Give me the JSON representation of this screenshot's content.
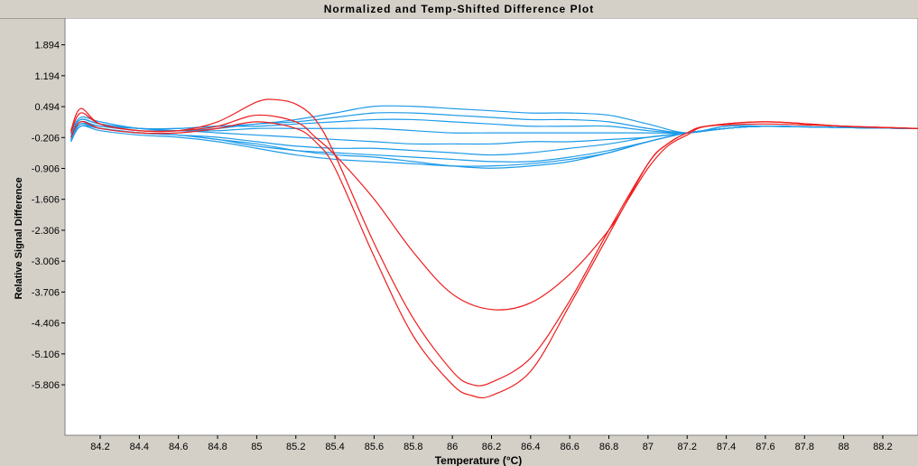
{
  "chart_data": {
    "type": "line",
    "title": "Normalized and Temp-Shifted Difference Plot",
    "xlabel": "Temperature (°C)",
    "ylabel": "Relative Signal Difference",
    "xlim": [
      84.02,
      88.38
    ],
    "ylim": [
      -6.95,
      2.5
    ],
    "xticks": [
      84.2,
      84.4,
      84.6,
      84.8,
      85,
      85.2,
      85.4,
      85.6,
      85.8,
      86,
      86.2,
      86.4,
      86.6,
      86.8,
      87,
      87.2,
      87.4,
      87.6,
      87.8,
      88,
      88.2
    ],
    "xtick_labels": [
      "84.2",
      "84.4",
      "84.6",
      "84.8",
      "85",
      "85.2",
      "85.4",
      "85.6",
      "85.8",
      "86",
      "86.2",
      "86.4",
      "86.6",
      "86.8",
      "87",
      "87.2",
      "87.4",
      "87.6",
      "87.8",
      "88",
      "88.2"
    ],
    "yticks": [
      1.894,
      1.194,
      0.494,
      -0.206,
      -0.906,
      -1.606,
      -2.306,
      -3.006,
      -3.706,
      -4.406,
      -5.106,
      -5.806
    ],
    "ytick_labels": [
      "1.894",
      "1.194",
      "0.494",
      "-0.206",
      "-0.906",
      "-1.606",
      "-2.306",
      "-3.006",
      "-3.706",
      "-4.406",
      "-5.106",
      "-5.806"
    ],
    "grid": false,
    "colors": {
      "variant": "#ee1c1c",
      "reference": "#1e9be8",
      "background": "#ffffff",
      "frame": "#d4d0c8"
    },
    "series": [
      {
        "group": "variant",
        "x": [
          84.05,
          84.1,
          84.2,
          84.4,
          84.6,
          84.8,
          85,
          85.1,
          85.2,
          85.3,
          85.4,
          85.6,
          85.8,
          86,
          86.1,
          86.2,
          86.4,
          86.6,
          86.8,
          87,
          87.1,
          87.2,
          87.3,
          87.6,
          88,
          88.38
        ],
        "y": [
          -0.1,
          0.35,
          0.1,
          -0.05,
          -0.05,
          0.15,
          0.6,
          0.65,
          0.55,
          0.2,
          -0.6,
          -2.6,
          -4.3,
          -5.5,
          -5.8,
          -5.75,
          -5.2,
          -3.9,
          -2.3,
          -0.8,
          -0.35,
          -0.1,
          0.05,
          0.1,
          0.05,
          0.0
        ]
      },
      {
        "group": "variant",
        "x": [
          84.05,
          84.1,
          84.2,
          84.4,
          84.6,
          84.8,
          85,
          85.2,
          85.3,
          85.4,
          85.6,
          85.8,
          86,
          86.1,
          86.2,
          86.4,
          86.6,
          86.8,
          87,
          87.1,
          87.2,
          87.3,
          87.6,
          88,
          88.38
        ],
        "y": [
          -0.2,
          0.15,
          0.0,
          -0.1,
          -0.1,
          0.0,
          0.15,
          0.0,
          -0.3,
          -0.9,
          -2.9,
          -4.7,
          -5.8,
          -6.05,
          -6.05,
          -5.5,
          -4.0,
          -2.4,
          -0.8,
          -0.35,
          -0.1,
          0.05,
          0.15,
          0.05,
          0.0
        ]
      },
      {
        "group": "variant",
        "x": [
          84.05,
          84.1,
          84.2,
          84.4,
          84.6,
          84.8,
          85,
          85.2,
          85.3,
          85.4,
          85.6,
          85.8,
          86,
          86.2,
          86.4,
          86.6,
          86.8,
          86.9,
          87,
          87.1,
          87.2,
          87.3,
          87.6,
          88,
          88.38
        ],
        "y": [
          -0.05,
          0.45,
          0.1,
          -0.05,
          -0.05,
          0.05,
          0.3,
          0.15,
          -0.2,
          -0.6,
          -1.6,
          -2.8,
          -3.75,
          -4.1,
          -3.95,
          -3.3,
          -2.3,
          -1.6,
          -0.9,
          -0.4,
          -0.15,
          0.05,
          0.15,
          0.05,
          0.0
        ]
      },
      {
        "group": "reference",
        "x": [
          84.05,
          84.1,
          84.2,
          84.4,
          84.6,
          84.8,
          85,
          85.2,
          85.4,
          85.6,
          85.8,
          86,
          86.2,
          86.4,
          86.6,
          86.8,
          87,
          87.2,
          87.4,
          87.6,
          88,
          88.38
        ],
        "y": [
          -0.1,
          0.25,
          0.15,
          0.0,
          0.0,
          0.05,
          0.1,
          0.2,
          0.35,
          0.5,
          0.5,
          0.45,
          0.4,
          0.35,
          0.35,
          0.3,
          0.1,
          -0.1,
          0.05,
          0.05,
          0.02,
          0.0
        ]
      },
      {
        "group": "reference",
        "x": [
          84.05,
          84.1,
          84.2,
          84.4,
          84.6,
          84.8,
          85,
          85.2,
          85.4,
          85.6,
          85.8,
          86,
          86.2,
          86.4,
          86.6,
          86.8,
          87,
          87.2,
          87.4,
          87.6,
          88,
          88.38
        ],
        "y": [
          -0.15,
          0.2,
          0.1,
          0.0,
          -0.05,
          0.0,
          0.1,
          0.15,
          0.25,
          0.35,
          0.35,
          0.3,
          0.25,
          0.2,
          0.2,
          0.15,
          0.0,
          -0.1,
          0.05,
          0.05,
          0.02,
          0.0
        ]
      },
      {
        "group": "reference",
        "x": [
          84.05,
          84.1,
          84.2,
          84.4,
          84.6,
          84.8,
          85,
          85.2,
          85.4,
          85.6,
          85.8,
          86,
          86.2,
          86.4,
          86.6,
          86.8,
          87,
          87.2,
          87.4,
          87.6,
          88,
          88.38
        ],
        "y": [
          -0.1,
          0.2,
          0.1,
          0.0,
          0.0,
          0.05,
          0.05,
          0.1,
          0.15,
          0.2,
          0.2,
          0.15,
          0.1,
          0.05,
          0.05,
          0.05,
          -0.05,
          -0.1,
          0.0,
          0.05,
          0.02,
          0.0
        ]
      },
      {
        "group": "reference",
        "x": [
          84.05,
          84.1,
          84.2,
          84.4,
          84.6,
          84.8,
          85,
          85.2,
          85.4,
          85.6,
          85.8,
          86,
          86.2,
          86.4,
          86.6,
          86.8,
          87,
          87.2,
          87.4,
          87.6,
          88,
          88.38
        ],
        "y": [
          -0.2,
          0.15,
          0.05,
          0.0,
          -0.05,
          -0.05,
          0.0,
          0.0,
          0.0,
          0.0,
          -0.05,
          -0.1,
          -0.1,
          -0.1,
          -0.1,
          -0.1,
          -0.1,
          -0.1,
          0.0,
          0.05,
          0.02,
          0.0
        ]
      },
      {
        "group": "reference",
        "x": [
          84.05,
          84.1,
          84.2,
          84.4,
          84.6,
          84.8,
          85,
          85.2,
          85.4,
          85.6,
          85.8,
          86,
          86.2,
          86.4,
          86.6,
          86.8,
          87,
          87.2,
          87.4,
          87.6,
          88,
          88.38
        ],
        "y": [
          -0.2,
          0.1,
          0.05,
          -0.05,
          -0.05,
          -0.1,
          -0.15,
          -0.2,
          -0.25,
          -0.3,
          -0.35,
          -0.35,
          -0.35,
          -0.3,
          -0.3,
          -0.25,
          -0.2,
          -0.1,
          0.0,
          0.05,
          0.02,
          0.0
        ]
      },
      {
        "group": "reference",
        "x": [
          84.05,
          84.1,
          84.2,
          84.4,
          84.6,
          84.8,
          85,
          85.2,
          85.4,
          85.6,
          85.8,
          86,
          86.2,
          86.4,
          86.6,
          86.8,
          87,
          87.2,
          87.4,
          87.6,
          88,
          88.38
        ],
        "y": [
          -0.25,
          0.1,
          0.0,
          -0.1,
          -0.15,
          -0.2,
          -0.3,
          -0.4,
          -0.45,
          -0.45,
          -0.5,
          -0.55,
          -0.6,
          -0.55,
          -0.45,
          -0.35,
          -0.2,
          -0.1,
          0.0,
          0.05,
          0.02,
          0.0
        ]
      },
      {
        "group": "reference",
        "x": [
          84.05,
          84.1,
          84.2,
          84.4,
          84.6,
          84.8,
          85,
          85.2,
          85.4,
          85.6,
          85.8,
          86,
          86.2,
          86.4,
          86.6,
          86.8,
          87,
          87.2,
          87.4,
          87.6,
          88,
          88.38
        ],
        "y": [
          -0.3,
          0.05,
          0.0,
          -0.1,
          -0.15,
          -0.25,
          -0.4,
          -0.5,
          -0.55,
          -0.6,
          -0.65,
          -0.7,
          -0.75,
          -0.75,
          -0.65,
          -0.5,
          -0.3,
          -0.1,
          0.0,
          0.05,
          0.02,
          0.0
        ]
      },
      {
        "group": "reference",
        "x": [
          84.05,
          84.1,
          84.2,
          84.4,
          84.6,
          84.8,
          85,
          85.2,
          85.4,
          85.6,
          85.8,
          86,
          86.2,
          86.4,
          86.6,
          86.8,
          87,
          87.2,
          87.4,
          87.6,
          88,
          88.38
        ],
        "y": [
          -0.3,
          0.05,
          -0.05,
          -0.15,
          -0.2,
          -0.3,
          -0.45,
          -0.6,
          -0.7,
          -0.75,
          -0.8,
          -0.85,
          -0.85,
          -0.8,
          -0.7,
          -0.55,
          -0.3,
          -0.1,
          0.0,
          0.05,
          0.02,
          0.0
        ]
      },
      {
        "group": "reference",
        "x": [
          84.05,
          84.1,
          84.2,
          84.4,
          84.6,
          84.8,
          85,
          85.2,
          85.4,
          85.6,
          85.8,
          86,
          86.2,
          86.4,
          86.6,
          86.8,
          87,
          87.2,
          87.4,
          87.6,
          88,
          88.38
        ],
        "y": [
          -0.25,
          0.1,
          0.0,
          -0.1,
          -0.15,
          -0.25,
          -0.35,
          -0.5,
          -0.6,
          -0.65,
          -0.75,
          -0.85,
          -0.9,
          -0.85,
          -0.75,
          -0.55,
          -0.3,
          -0.1,
          0.0,
          0.05,
          0.02,
          0.0
        ]
      }
    ]
  }
}
